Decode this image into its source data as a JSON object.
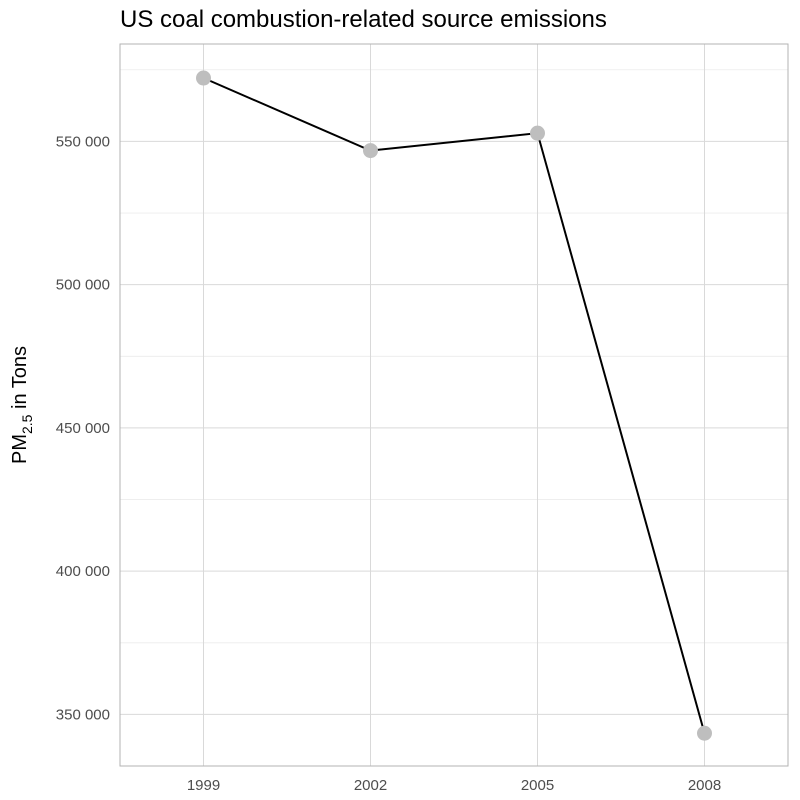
{
  "chart_data": {
    "type": "line",
    "title": "US coal combustion-related source emissions",
    "xlabel": "",
    "ylabel": {
      "main": "PM",
      "sub": "2.5",
      "rest": " in Tons"
    },
    "x": [
      1999,
      2002,
      2005,
      2008
    ],
    "x_tick_labels": [
      "1999",
      "2002",
      "2005",
      "2008"
    ],
    "y_ticks": [
      350000,
      400000,
      450000,
      500000,
      550000
    ],
    "y_tick_labels": [
      "350 000",
      "400 000",
      "450 000",
      "500 000",
      "550 000"
    ],
    "ylim": [
      332000,
      584000
    ],
    "series": [
      {
        "values": [
          572126,
          546789,
          552881,
          343432
        ]
      }
    ],
    "grid": true,
    "colors": {
      "line": "#000000",
      "point": "#bebebe",
      "grid_major": "#d9d9d9",
      "grid_minor": "#ececec",
      "panel_border": "#b3b3b3"
    }
  }
}
